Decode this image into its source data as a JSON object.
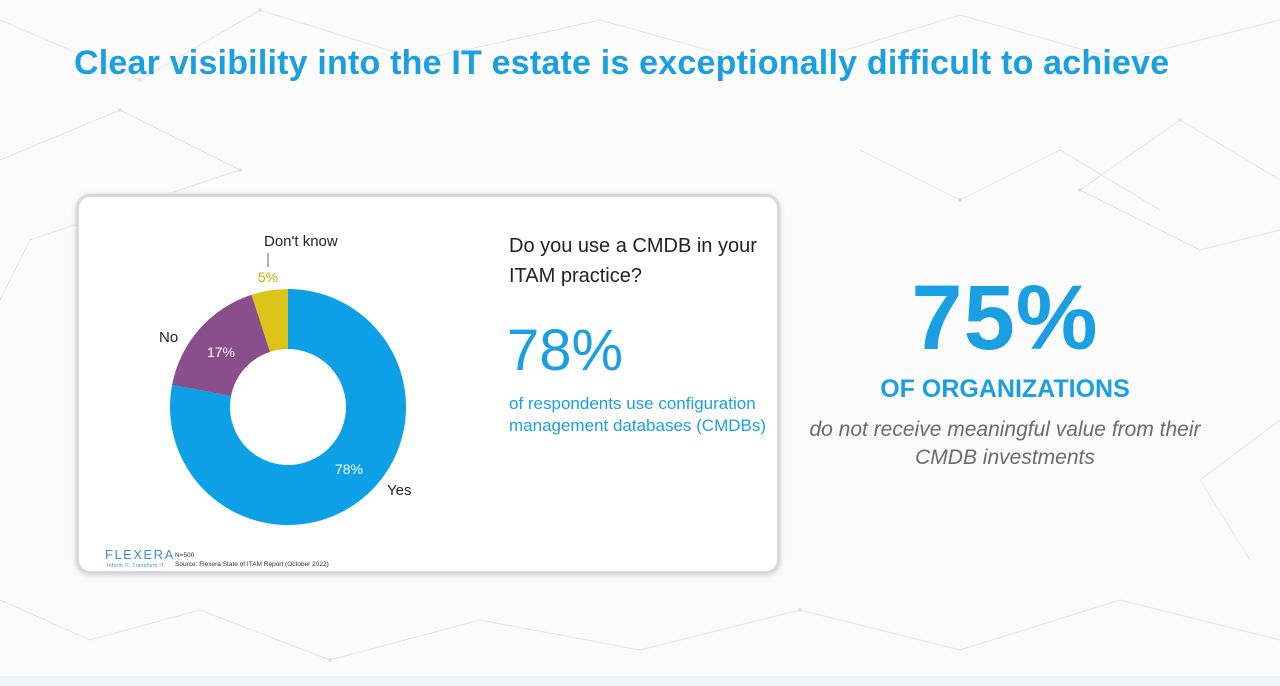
{
  "slide": {
    "title": "Clear visibility into the IT estate is exceptionally difficult to achieve"
  },
  "card": {
    "question": "Do you use a CMDB in your ITAM practice?",
    "big_stat": "78%",
    "stat_description": "of respondents use configuration management databases (CMDBs)",
    "logo_text": "FLEXERA",
    "logo_tagline": "Inform IT. Transform IT.",
    "note_n": "N=500",
    "note_source": "Source: Flexera State of ITAM Report (October 2022)"
  },
  "side": {
    "big_number": "75%",
    "heading": "OF ORGANIZATIONS",
    "description": "do not receive meaningful value from their CMDB investments"
  },
  "chart_data": {
    "type": "pie",
    "donut": true,
    "categories": [
      "Yes",
      "No",
      "Don't know"
    ],
    "values": [
      78,
      17,
      5
    ],
    "value_labels": [
      "78%",
      "17%",
      "5%"
    ],
    "colors": [
      "#0ea0e6",
      "#8b4e8d",
      "#dcc419"
    ],
    "label_colors": [
      "#ffffff",
      "#ffffff",
      "#c9b10c"
    ],
    "start": "top, clockwise"
  }
}
